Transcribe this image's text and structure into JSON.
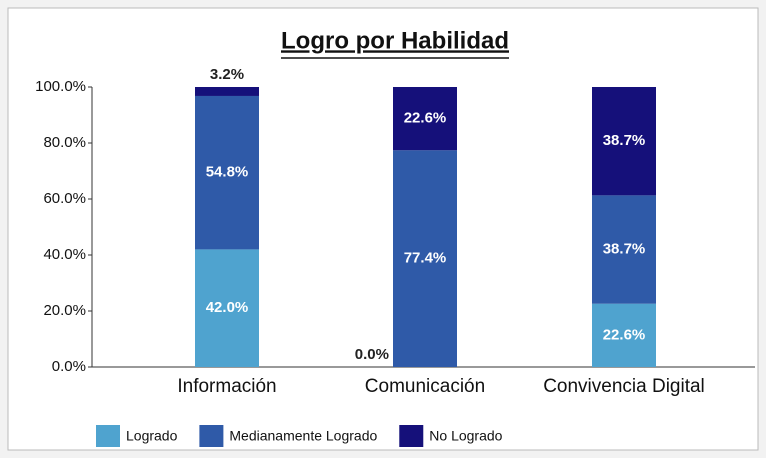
{
  "chart_data": {
    "type": "stacked_bar",
    "title": "Logro por Habilidad",
    "categories": [
      "Información",
      "Comunicación",
      "Convivencia Digital"
    ],
    "series": [
      {
        "name": "Logrado",
        "color": "#4fa3cf",
        "values": [
          42.0,
          0.0,
          22.6
        ],
        "value_labels": [
          "42.0%",
          "0.0%",
          "22.6%"
        ]
      },
      {
        "name": "Medianamente Logrado",
        "color": "#2f5aa8",
        "values": [
          54.8,
          77.4,
          38.7
        ],
        "value_labels": [
          "54.8%",
          "77.4%",
          "38.7%"
        ]
      },
      {
        "name": "No Logrado",
        "color": "#15107a",
        "values": [
          3.2,
          22.6,
          38.7
        ],
        "value_labels": [
          "3.2%",
          "22.6%",
          "38.7%"
        ]
      }
    ],
    "ylim": [
      0,
      100
    ],
    "yticks": [
      {
        "value": 0,
        "label": "0.0%"
      },
      {
        "value": 20,
        "label": "20.0%"
      },
      {
        "value": 40,
        "label": "40.0%"
      },
      {
        "value": 60,
        "label": "60.0%"
      },
      {
        "value": 80,
        "label": "80.0%"
      },
      {
        "value": 100,
        "label": "100.0%"
      }
    ],
    "legend": "bottom"
  }
}
